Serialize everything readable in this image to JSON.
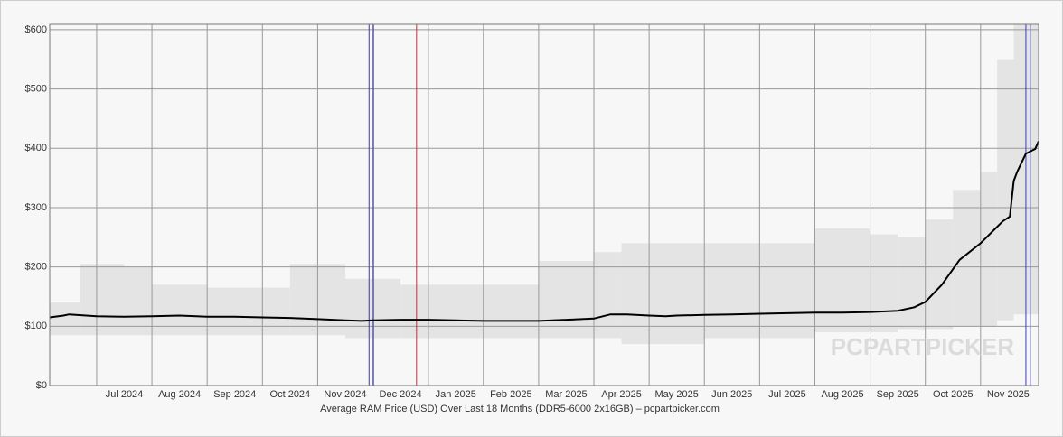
{
  "chart_data": {
    "type": "line",
    "x_label": "Average RAM Price (USD) Over Last 18 Months (DDR5-6000 2x16GB) – pcpartpicker.com",
    "watermark": "PCPARTPICKER",
    "x": [
      -0.85,
      -0.6,
      -0.5,
      0,
      0.5,
      1,
      1.5,
      2,
      2.5,
      3,
      3.5,
      4,
      4.5,
      4.8,
      5,
      5.5,
      6,
      6.5,
      7,
      7.5,
      8,
      8.5,
      9,
      9.3,
      9.6,
      10,
      10.3,
      10.5,
      11,
      11.5,
      12,
      12.5,
      13,
      13.5,
      14,
      14.5,
      14.8,
      15,
      15.3,
      15.62,
      16,
      16.4,
      16.53,
      16.6,
      16.66,
      16.82,
      16.99,
      17.05
    ],
    "values": [
      115,
      118,
      120,
      117,
      116,
      117,
      118,
      116,
      116,
      115,
      114,
      112,
      110,
      109,
      110,
      111,
      111,
      110,
      109,
      109,
      109,
      111,
      113,
      120,
      120,
      118,
      117,
      118,
      119,
      120,
      121,
      122,
      123,
      123,
      124,
      126,
      132,
      141,
      170,
      212,
      240,
      277,
      285,
      345,
      360,
      391,
      399,
      412
    ],
    "color": "#000000",
    "range": {
      "color": "#e4e4e4",
      "x": [
        -0.85,
        -0.3,
        0.5,
        1,
        2,
        3.5,
        4.5,
        5.5,
        7,
        8,
        9,
        9.5,
        11,
        13,
        14,
        14.5,
        15,
        15.5,
        16,
        16.3,
        16.6,
        17.05
      ],
      "low": [
        85,
        85,
        85,
        85,
        85,
        85,
        80,
        80,
        80,
        80,
        80,
        70,
        80,
        90,
        90,
        95,
        95,
        100,
        100,
        110,
        120,
        150
      ],
      "high": [
        140,
        205,
        200,
        170,
        165,
        205,
        180,
        170,
        170,
        210,
        225,
        240,
        240,
        265,
        255,
        250,
        280,
        330,
        360,
        550,
        610,
        600
      ]
    },
    "markers": [
      {
        "x": 4.93,
        "color": "#3b3bb0"
      },
      {
        "x": 5.01,
        "color": "#3b3bb0"
      },
      {
        "x": 5.79,
        "color": "#c03030"
      },
      {
        "x": 6.0,
        "color": "#444444"
      },
      {
        "x": 16.82,
        "color": "#3b3bb0"
      },
      {
        "x": 16.9,
        "color": "#3b3bb0"
      }
    ],
    "xlim": [
      -0.85,
      17.05
    ],
    "xticks": [
      {
        "value": 0,
        "label": "Jul 2024"
      },
      {
        "value": 1,
        "label": "Aug 2024"
      },
      {
        "value": 2,
        "label": "Sep 2024"
      },
      {
        "value": 3,
        "label": "Oct 2024"
      },
      {
        "value": 4,
        "label": "Nov 2024"
      },
      {
        "value": 5,
        "label": "Dec 2024"
      },
      {
        "value": 6,
        "label": "Jan 2025"
      },
      {
        "value": 7,
        "label": "Feb 2025"
      },
      {
        "value": 8,
        "label": "Mar 2025"
      },
      {
        "value": 9,
        "label": "Apr 2025"
      },
      {
        "value": 10,
        "label": "May 2025"
      },
      {
        "value": 11,
        "label": "Jun 2025"
      },
      {
        "value": 12,
        "label": "Jul 2025"
      },
      {
        "value": 13,
        "label": "Aug 2025"
      },
      {
        "value": 14,
        "label": "Sep 2025"
      },
      {
        "value": 15,
        "label": "Oct 2025"
      },
      {
        "value": 16,
        "label": "Nov 2025"
      }
    ],
    "ylim": [
      0,
      609
    ],
    "yticks": [
      {
        "value": 0,
        "label": "$0"
      },
      {
        "value": 100,
        "label": "$100"
      },
      {
        "value": 200,
        "label": "$200"
      },
      {
        "value": 300,
        "label": "$300"
      },
      {
        "value": 400,
        "label": "$400"
      },
      {
        "value": 500,
        "label": "$500"
      },
      {
        "value": 600,
        "label": "$600"
      }
    ],
    "grid": true
  }
}
